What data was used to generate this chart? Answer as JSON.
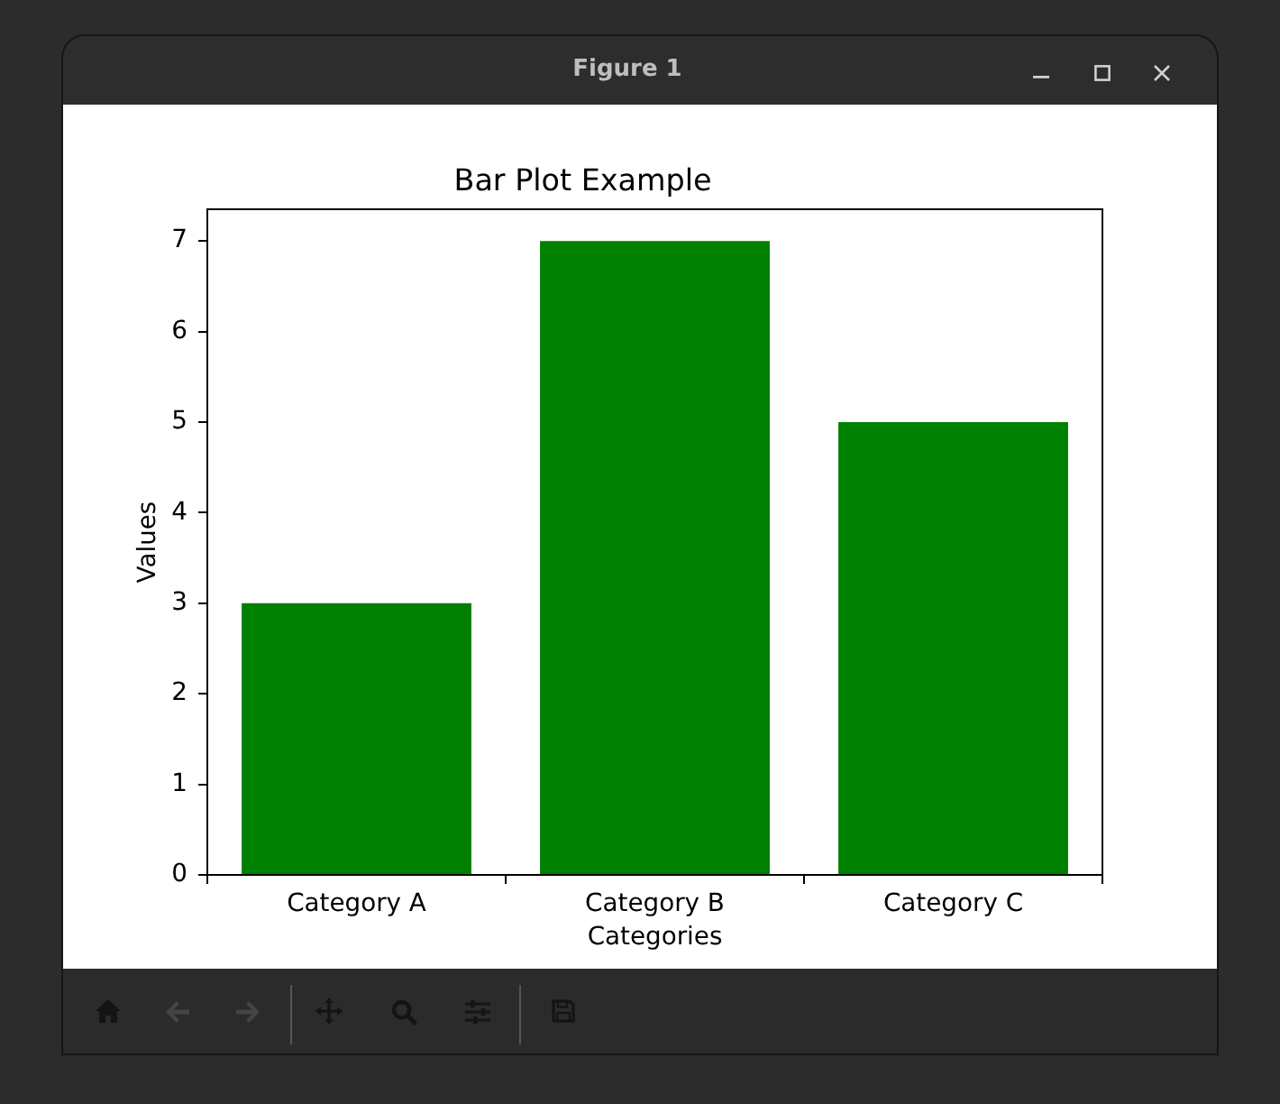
{
  "chart_data": {
    "type": "bar",
    "title": "Bar Plot Example",
    "xlabel": "Categories",
    "ylabel": "Values",
    "categories": [
      "Category A",
      "Category B",
      "Category C"
    ],
    "values": [
      3,
      7,
      5
    ],
    "color": "#008000",
    "ylim": [
      0,
      7.35
    ],
    "yticks": [
      0,
      1,
      2,
      3,
      4,
      5,
      6,
      7
    ],
    "annotations": [
      "Figure 1"
    ]
  }
}
